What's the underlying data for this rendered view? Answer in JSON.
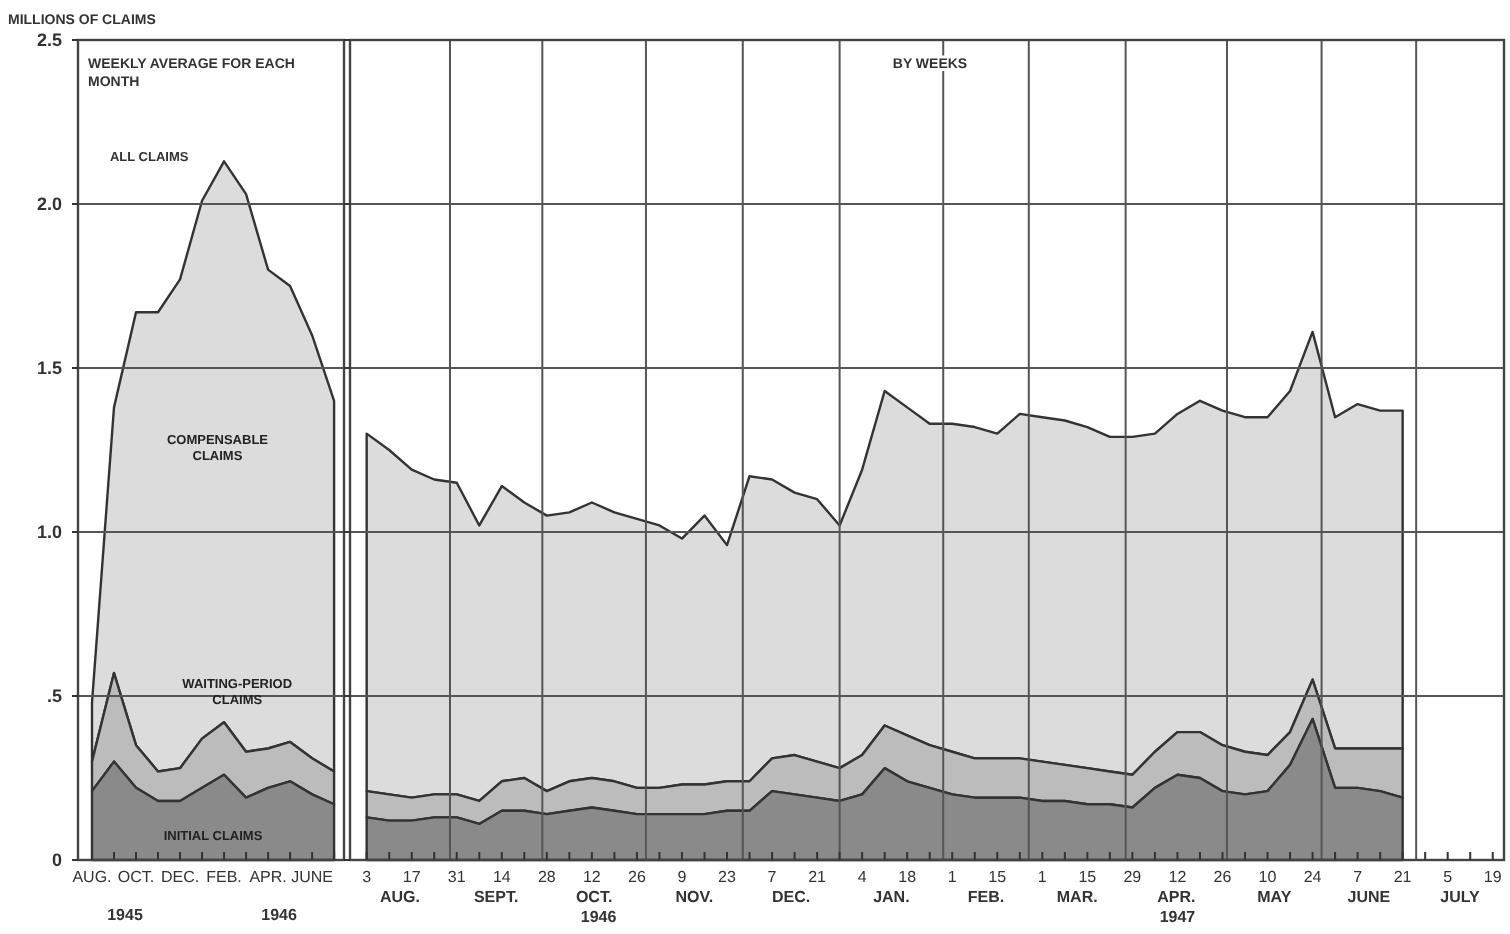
{
  "chart_data": [
    {
      "type": "area",
      "stacked": true,
      "title": "WEEKLY AVERAGE FOR EACH MONTH",
      "ylabel": "MILLIONS OF CLAIMS",
      "categories": [
        "AUG.",
        null,
        "OCT.",
        null,
        "DEC.",
        null,
        "FEB.",
        null,
        "APR.",
        null,
        "JUNE",
        null
      ],
      "ylim": [
        0,
        2.5
      ],
      "yticks": [
        0,
        {
          "value": 0.5,
          "label": ".5"
        },
        {
          "value": 1,
          "label": "1.0"
        },
        {
          "value": 1.5,
          "label": "1.5"
        },
        {
          "value": 2,
          "label": "2.0"
        },
        2.5
      ],
      "grid": "y",
      "series": [
        {
          "name": "INITIAL CLAIMS",
          "color": "#8a8a8a",
          "values": [
            0.21,
            0.3,
            0.22,
            0.18,
            0.18,
            0.22,
            0.26,
            0.19,
            0.22,
            0.24,
            0.2,
            0.17
          ]
        },
        {
          "name": "WAITING-PERIOD CLAIMS",
          "color": "#bcbcbc",
          "values": [
            0.09,
            0.27,
            0.13,
            0.09,
            0.1,
            0.15,
            0.16,
            0.14,
            0.12,
            0.12,
            0.11,
            0.1
          ]
        },
        {
          "name": "COMPENSABLE CLAIMS",
          "color": "#dcdcdc",
          "values": [
            0.18,
            0.81,
            1.32,
            1.4,
            1.49,
            1.64,
            1.71,
            1.7,
            1.46,
            1.39,
            1.29,
            1.13
          ]
        }
      ],
      "annotations": [
        "ALL CLAIMS",
        "1945",
        "1946"
      ]
    },
    {
      "type": "area",
      "stacked": true,
      "title": "BY WEEKS",
      "categories": [
        "3",
        null,
        "17",
        null,
        "31",
        null,
        "14",
        null,
        "28",
        null,
        "12",
        null,
        "26",
        null,
        "9",
        null,
        "23",
        null,
        "7",
        null,
        "21",
        null,
        "4",
        null,
        "18",
        null,
        "1",
        null,
        "15",
        null,
        "1",
        null,
        "15",
        null,
        "29",
        null,
        "12",
        null,
        "26",
        null,
        "10",
        null,
        "24",
        null,
        "7",
        null,
        "21",
        null,
        "5",
        null,
        "19"
      ],
      "ylim": [
        0,
        2.5
      ],
      "yticks": [
        0,
        0.5,
        1,
        1.5,
        2,
        2.5
      ],
      "grid": true,
      "tick_labels": "x",
      "series": [
        {
          "color": "#8a8a8a",
          "values": [
            0.13,
            0.12,
            0.12,
            0.13,
            0.13,
            0.11,
            0.15,
            0.15,
            0.14,
            0.15,
            0.16,
            0.15,
            0.14,
            0.14,
            0.14,
            0.14,
            0.15,
            0.15,
            0.21,
            0.2,
            0.19,
            0.18,
            0.2,
            0.28,
            0.24,
            0.22,
            0.2,
            0.19,
            0.19,
            0.19,
            0.18,
            0.18,
            0.17,
            0.17,
            0.16,
            0.22,
            0.26,
            0.25,
            0.21,
            0.2,
            0.21,
            0.29,
            0.43,
            0.22,
            0.22,
            0.21,
            0.19,
            null,
            null,
            null,
            null
          ]
        },
        {
          "color": "#bcbcbc",
          "values": [
            0.08,
            0.08,
            0.07,
            0.07,
            0.07,
            0.07,
            0.09,
            0.1,
            0.07,
            0.09,
            0.09,
            0.09,
            0.08,
            0.08,
            0.09,
            0.09,
            0.09,
            0.09,
            0.1,
            0.12,
            0.11,
            0.1,
            0.12,
            0.13,
            0.14,
            0.13,
            0.13,
            0.12,
            0.12,
            0.12,
            0.12,
            0.11,
            0.11,
            0.1,
            0.1,
            0.11,
            0.13,
            0.14,
            0.14,
            0.13,
            0.11,
            0.1,
            0.12,
            0.12,
            0.12,
            0.13,
            0.15,
            null,
            null,
            null,
            null
          ]
        },
        {
          "color": "#dcdcdc",
          "values": [
            1.09,
            1.05,
            1.0,
            0.96,
            0.95,
            0.84,
            0.9,
            0.84,
            0.84,
            0.82,
            0.84,
            0.82,
            0.82,
            0.8,
            0.75,
            0.82,
            0.72,
            0.93,
            0.85,
            0.8,
            0.8,
            0.74,
            0.87,
            1.02,
            1.0,
            0.98,
            1.0,
            1.01,
            0.99,
            1.05,
            1.05,
            1.05,
            1.04,
            1.02,
            1.03,
            0.97,
            0.97,
            1.01,
            1.02,
            1.02,
            1.03,
            1.04,
            1.06,
            1.01,
            1.05,
            1.03,
            1.03,
            null,
            null,
            null,
            null
          ]
        }
      ],
      "annotations": [
        "AUG.",
        "SEPT.",
        "OCT.",
        "NOV.",
        "DEC.",
        "JAN.",
        "FEB.",
        "MAR.",
        "APR.",
        "MAY",
        "JUNE",
        "JULY",
        "1946",
        "1947"
      ]
    }
  ]
}
